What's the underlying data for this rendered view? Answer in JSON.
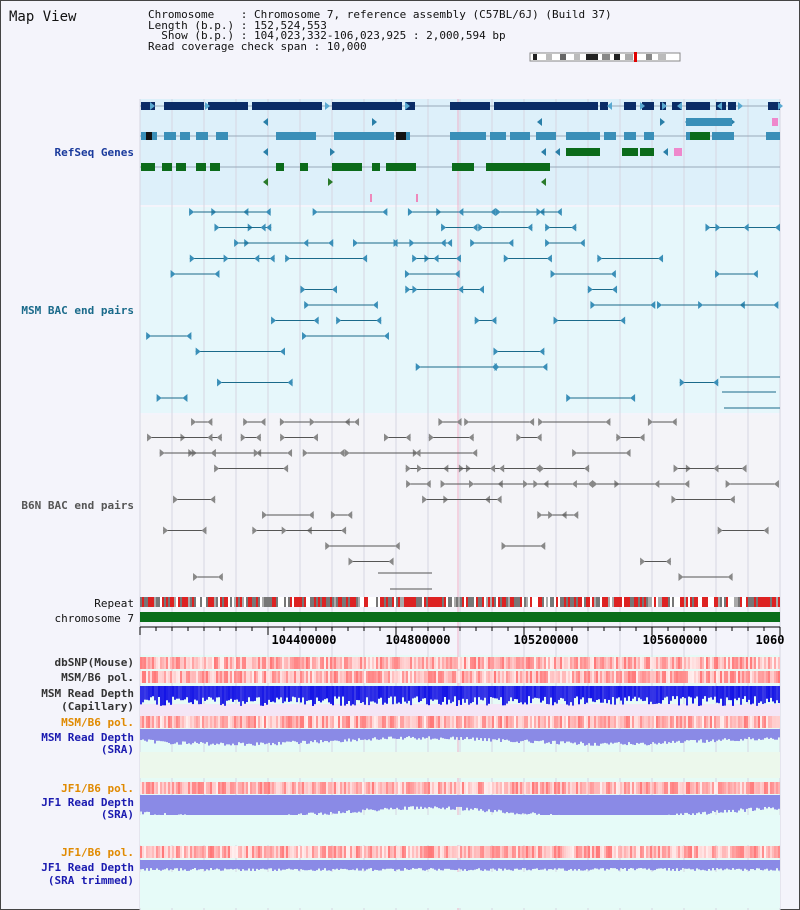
{
  "window": {
    "title": "Map View"
  },
  "info": {
    "chromosome_label": "Chromosome",
    "chromosome_value": "Chromosome 7, reference assembly (C57BL/6J) (Build 37)",
    "length_label": "Length (b.p.)",
    "length_value": "152,524,553",
    "show_label": "Show (b.p.)",
    "show_value": "104,023,332-106,023,925 : 2,000,594 bp",
    "coverage_label": "Read coverage check span",
    "coverage_value": "10,000"
  },
  "tracks": {
    "refseq": {
      "label": "RefSeq Genes",
      "color": "#1a3a9c"
    },
    "msm_bac": {
      "label": "MSM BAC end pairs",
      "color": "#1a6a8a"
    },
    "b6n_bac": {
      "label": "B6N BAC end pairs",
      "color": "#555555"
    },
    "repeat": {
      "label": "Repeat",
      "color": "#111111"
    },
    "chromosome": {
      "label": "chromosome 7",
      "color": "#111111"
    },
    "dbsnp": {
      "label": "dbSNP(Mouse)",
      "color": "#333333"
    },
    "msm_b6_pol_1": {
      "label": "MSM/B6 pol.",
      "color": "#333333"
    },
    "msm_depth_cap_1": {
      "label": "MSM Read Depth",
      "color": "#333333"
    },
    "msm_depth_cap_2": {
      "label": "(Capillary)",
      "color": "#333333"
    },
    "msm_b6_pol_2": {
      "label": "MSM/B6 pol.",
      "color": "#e08a00"
    },
    "msm_depth_sra_1": {
      "label": "MSM Read Depth",
      "color": "#1a1ab0"
    },
    "msm_depth_sra_2": {
      "label": "(SRA)",
      "color": "#1a1ab0"
    },
    "jf1_b6_pol_1": {
      "label": "JF1/B6 pol.",
      "color": "#e08a00"
    },
    "jf1_depth_sra_1": {
      "label": "JF1 Read Depth",
      "color": "#1a1ab0"
    },
    "jf1_depth_sra_2": {
      "label": "(SRA)",
      "color": "#1a1ab0"
    },
    "jf1_b6_pol_3": {
      "label": "JF1/B6 pol.",
      "color": "#e08a00"
    },
    "jf1_depth_trim_1": {
      "label": "JF1 Read Depth",
      "color": "#1a1ab0"
    },
    "jf1_depth_trim_2": {
      "label": "(SRA trimmed)",
      "color": "#1a1ab0"
    }
  },
  "axis": {
    "ticks": [
      "104400000",
      "104800000",
      "105200000",
      "105600000",
      "1060"
    ]
  },
  "colors": {
    "gene_dark": "#0b2c66",
    "gene_mid": "#3a8fb8",
    "gene_green": "#0b6b1a",
    "refseq_bg": "#ddf0fa",
    "msm_bg": "#e6f7fb",
    "b6n_bg": "#f4f4f8",
    "chrom_bar": "#0a6e1a",
    "depth_blue": "#1414e6",
    "depth_lilac": "#8a8ae6",
    "lower_bg": "#e6fbf6"
  }
}
